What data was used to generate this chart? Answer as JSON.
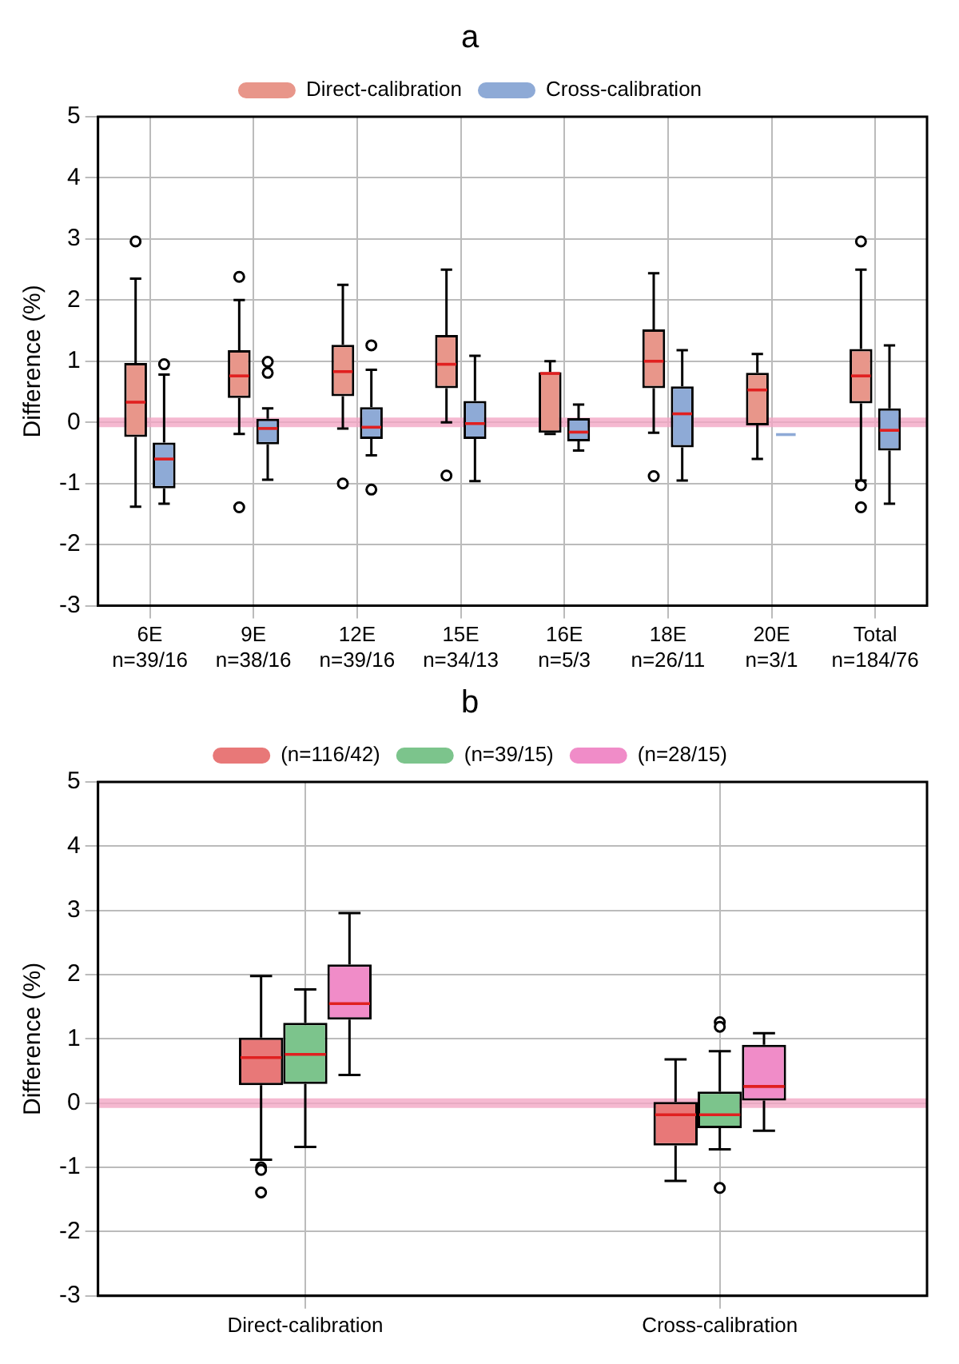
{
  "chart_data": [
    {
      "type": "box",
      "title": "a",
      "ylabel": "Difference (%)",
      "categories": [
        "6E\nn=39/16",
        "9E\nn=38/16",
        "12E\nn=39/16",
        "15E\nn=34/13",
        "16E\nn=5/3",
        "18E\nn=26/11",
        "20E\nn=3/1",
        "Total\nn=184/76"
      ],
      "ylim": [
        -3,
        5
      ],
      "yticks": [
        -3,
        -2,
        -1,
        0,
        1,
        2,
        3,
        4,
        5
      ],
      "grid": true,
      "legend": "top",
      "ref_lines": [
        {
          "axis": "y",
          "value": 0,
          "color": "#f2a6c4"
        }
      ],
      "series": [
        {
          "name": "Direct-calibration",
          "color": "#e8968a",
          "boxes": [
            {
              "low": -1.38,
              "q1": -0.24,
              "median": 0.33,
              "q3": 0.97,
              "high": 2.35,
              "outliers": [
                2.96
              ]
            },
            {
              "low": -0.19,
              "q1": 0.4,
              "median": 0.76,
              "q3": 1.18,
              "high": 2.0,
              "outliers": [
                2.38,
                -1.39
              ]
            },
            {
              "low": -0.1,
              "q1": 0.43,
              "median": 0.83,
              "q3": 1.27,
              "high": 2.25,
              "outliers": [
                -1.0
              ]
            },
            {
              "low": 0,
              "q1": 0.56,
              "median": 0.95,
              "q3": 1.43,
              "high": 2.5,
              "outliers": [
                -0.87
              ]
            },
            {
              "low": -0.19,
              "q1": -0.17,
              "median": 0.8,
              "q3": 0.82,
              "high": 1.0
            },
            {
              "low": -0.17,
              "q1": 0.56,
              "median": 1.0,
              "q3": 1.52,
              "high": 2.44,
              "outliers": [
                -0.88
              ]
            },
            {
              "low": -0.6,
              "q1": -0.05,
              "median": 0.53,
              "q3": 0.81,
              "high": 1.12
            },
            {
              "low": -0.95,
              "q1": 0.31,
              "median": 0.76,
              "q3": 1.2,
              "high": 2.5,
              "outliers": [
                2.96,
                -1.03,
                -1.39
              ]
            }
          ]
        },
        {
          "name": "Cross-calibration",
          "color": "#8eaad6",
          "boxes": [
            {
              "low": -1.33,
              "q1": -1.08,
              "median": -0.6,
              "q3": -0.33,
              "high": 0.78,
              "outliers": [
                0.95
              ]
            },
            {
              "low": -0.94,
              "q1": -0.36,
              "median": -0.1,
              "q3": 0.06,
              "high": 0.23,
              "outliers": [
                0.99,
                0.81
              ]
            },
            {
              "low": -0.54,
              "q1": -0.27,
              "median": -0.08,
              "q3": 0.25,
              "high": 0.86,
              "outliers": [
                1.26,
                -1.1
              ]
            },
            {
              "low": -0.96,
              "q1": -0.27,
              "median": -0.02,
              "q3": 0.35,
              "high": 1.09
            },
            {
              "low": -0.46,
              "q1": -0.31,
              "median": -0.16,
              "q3": 0.07,
              "high": 0.29
            },
            {
              "low": -0.95,
              "q1": -0.41,
              "median": 0.14,
              "q3": 0.59,
              "high": 1.18
            },
            {
              "low": -0.2,
              "q1": -0.2,
              "median": -0.2,
              "q3": -0.2,
              "high": -0.2
            },
            {
              "low": -1.33,
              "q1": -0.46,
              "median": -0.13,
              "q3": 0.23,
              "high": 1.26
            }
          ]
        }
      ]
    },
    {
      "type": "box",
      "title": "b",
      "ylabel": "Difference (%)",
      "categories": [
        "Direct-calibration",
        "Cross-calibration"
      ],
      "ylim": [
        -3,
        5
      ],
      "yticks": [
        -3,
        -2,
        -1,
        0,
        1,
        2,
        3,
        4,
        5
      ],
      "grid": true,
      "legend": "top",
      "ref_lines": [
        {
          "axis": "y",
          "value": 0,
          "color": "#f2a6c4"
        }
      ],
      "series": [
        {
          "name": "(n=116/42)",
          "color": "#e87878",
          "boxes": [
            {
              "low": -0.88,
              "q1": 0.28,
              "median": 0.71,
              "q3": 1.02,
              "high": 1.98,
              "outliers": [
                -1.0,
                -1.04,
                -1.39
              ]
            },
            {
              "low": -1.21,
              "q1": -0.66,
              "median": -0.18,
              "q3": 0.02,
              "high": 0.68
            }
          ]
        },
        {
          "name": "(n=39/15)",
          "color": "#7cc48c",
          "boxes": [
            {
              "low": -0.68,
              "q1": 0.3,
              "median": 0.76,
              "q3": 1.25,
              "high": 1.77
            },
            {
              "low": -0.72,
              "q1": -0.39,
              "median": -0.18,
              "q3": 0.18,
              "high": 0.81,
              "outliers": [
                1.26,
                1.19,
                -1.32
              ]
            }
          ]
        },
        {
          "name": "(n=28/15)",
          "color": "#f08cc8",
          "boxes": [
            {
              "low": 0.44,
              "q1": 1.3,
              "median": 1.55,
              "q3": 2.16,
              "high": 2.96
            },
            {
              "low": -0.43,
              "q1": 0.04,
              "median": 0.26,
              "q3": 0.91,
              "high": 1.09
            }
          ]
        }
      ]
    }
  ]
}
